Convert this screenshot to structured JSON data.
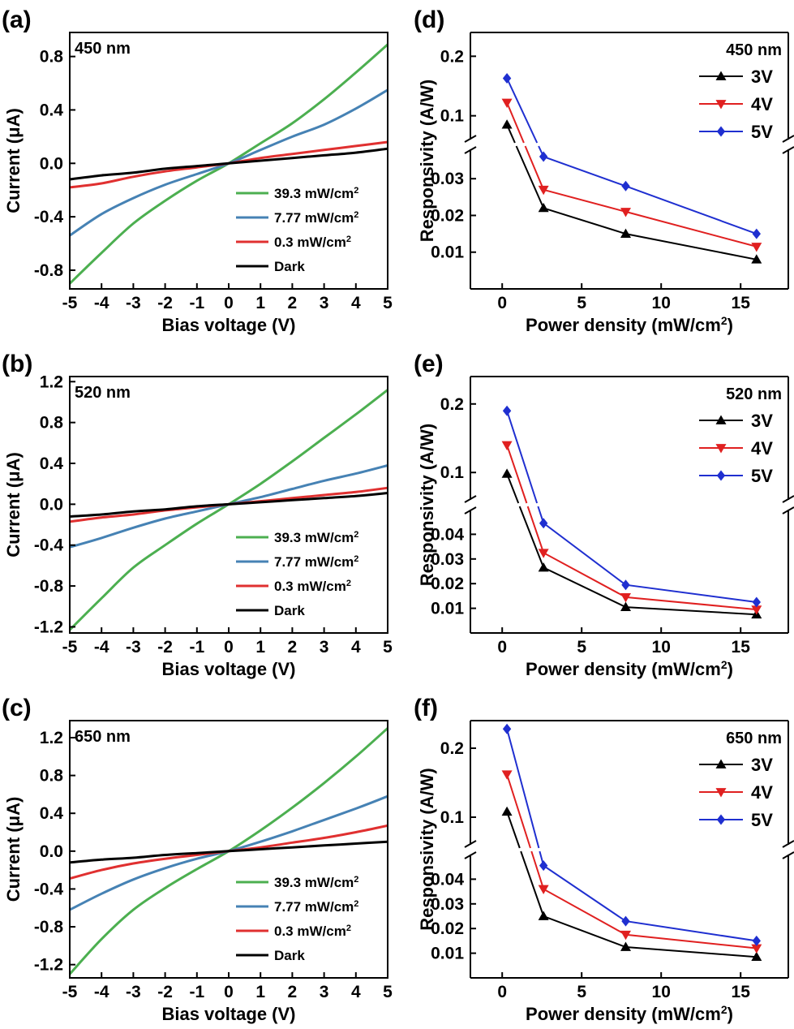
{
  "chart_data": [
    {
      "panel": "(a)",
      "type": "line",
      "annotation": "450 nm",
      "xlabel": "Bias voltage (V)",
      "ylabel": "Current (μA)",
      "xlim": [
        -5,
        5
      ],
      "ylim": [
        -0.94,
        0.98
      ],
      "xticks": [
        -5,
        -4,
        -3,
        -2,
        -1,
        0,
        1,
        2,
        3,
        4,
        5
      ],
      "xtick_labels": [
        "-5",
        "-4",
        "-3",
        "-2",
        "-1",
        "0",
        "1",
        "2",
        "3",
        "4",
        "5"
      ],
      "yticks": [
        -0.8,
        -0.4,
        0.0,
        0.4,
        0.8
      ],
      "ytick_labels": [
        "-0.8",
        "-0.4",
        "0.0",
        "0.4",
        "0.8"
      ],
      "legend_position": "lower-right",
      "series": [
        {
          "name": "39.3 mW/cm²",
          "color": "#4caf50",
          "x": [
            -5,
            -4,
            -3,
            -2,
            -1,
            0,
            1,
            2,
            3,
            4,
            5
          ],
          "y": [
            -0.9,
            -0.67,
            -0.45,
            -0.28,
            -0.13,
            0,
            0.15,
            0.3,
            0.48,
            0.68,
            0.89
          ]
        },
        {
          "name": "7.77 mW/cm²",
          "color": "#4682b4",
          "x": [
            -5,
            -4,
            -3,
            -2,
            -1,
            0,
            1,
            2,
            3,
            4,
            5
          ],
          "y": [
            -0.54,
            -0.38,
            -0.26,
            -0.16,
            -0.08,
            0,
            0.1,
            0.2,
            0.29,
            0.41,
            0.55
          ]
        },
        {
          "name": "0.3 mW/cm²",
          "color": "#e03030",
          "x": [
            -5,
            -4,
            -3,
            -2,
            -1,
            0,
            1,
            2,
            3,
            4,
            5
          ],
          "y": [
            -0.18,
            -0.15,
            -0.1,
            -0.06,
            -0.03,
            0,
            0.04,
            0.07,
            0.1,
            0.13,
            0.16
          ]
        },
        {
          "name": "Dark",
          "color": "#000000",
          "x": [
            -5,
            -4,
            -3,
            -2,
            -1,
            0,
            1,
            2,
            3,
            4,
            5
          ],
          "y": [
            -0.12,
            -0.09,
            -0.07,
            -0.04,
            -0.02,
            0,
            0.02,
            0.04,
            0.06,
            0.08,
            0.11
          ]
        }
      ]
    },
    {
      "panel": "(b)",
      "type": "line",
      "annotation": "520 nm",
      "xlabel": "Bias voltage (V)",
      "ylabel": "Current (μA)",
      "xlim": [
        -5,
        5
      ],
      "ylim": [
        -1.26,
        1.25
      ],
      "xticks": [
        -5,
        -4,
        -3,
        -2,
        -1,
        0,
        1,
        2,
        3,
        4,
        5
      ],
      "xtick_labels": [
        "-5",
        "-4",
        "-3",
        "-2",
        "-1",
        "0",
        "1",
        "2",
        "3",
        "4",
        "5"
      ],
      "yticks": [
        -1.2,
        -0.8,
        -0.4,
        0.0,
        0.4,
        0.8,
        1.2
      ],
      "ytick_labels": [
        "-1.2",
        "-0.8",
        "-0.4",
        "0.0",
        "0.4",
        "0.8",
        "1.2"
      ],
      "legend_position": "lower-right",
      "series": [
        {
          "name": "39.3 mW/cm²",
          "color": "#4caf50",
          "x": [
            -5,
            -4,
            -3,
            -2,
            -1,
            0,
            1,
            2,
            3,
            4,
            5
          ],
          "y": [
            -1.23,
            -0.92,
            -0.62,
            -0.4,
            -0.19,
            0,
            0.2,
            0.42,
            0.65,
            0.88,
            1.12
          ]
        },
        {
          "name": "7.77 mW/cm²",
          "color": "#4682b4",
          "x": [
            -5,
            -4,
            -3,
            -2,
            -1,
            0,
            1,
            2,
            3,
            4,
            5
          ],
          "y": [
            -0.42,
            -0.33,
            -0.23,
            -0.14,
            -0.07,
            0,
            0.07,
            0.15,
            0.23,
            0.3,
            0.38
          ]
        },
        {
          "name": "0.3 mW/cm²",
          "color": "#e03030",
          "x": [
            -5,
            -4,
            -3,
            -2,
            -1,
            0,
            1,
            2,
            3,
            4,
            5
          ],
          "y": [
            -0.17,
            -0.13,
            -0.1,
            -0.06,
            -0.03,
            0,
            0.03,
            0.06,
            0.09,
            0.12,
            0.16
          ]
        },
        {
          "name": "Dark",
          "color": "#000000",
          "x": [
            -5,
            -4,
            -3,
            -2,
            -1,
            0,
            1,
            2,
            3,
            4,
            5
          ],
          "y": [
            -0.12,
            -0.1,
            -0.07,
            -0.05,
            -0.02,
            0,
            0.02,
            0.04,
            0.06,
            0.08,
            0.11
          ]
        }
      ]
    },
    {
      "panel": "(c)",
      "type": "line",
      "annotation": "650 nm",
      "xlabel": "Bias voltage (V)",
      "ylabel": "Current (μA)",
      "xlim": [
        -5,
        5
      ],
      "ylim": [
        -1.34,
        1.38
      ],
      "xticks": [
        -5,
        -4,
        -3,
        -2,
        -1,
        0,
        1,
        2,
        3,
        4,
        5
      ],
      "xtick_labels": [
        "-5",
        "-4",
        "-3",
        "-2",
        "-1",
        "0",
        "1",
        "2",
        "3",
        "4",
        "5"
      ],
      "yticks": [
        -1.2,
        -0.8,
        -0.4,
        0.0,
        0.4,
        0.8,
        1.2
      ],
      "ytick_labels": [
        "-1.2",
        "-0.8",
        "-0.4",
        "0.0",
        "0.4",
        "0.8",
        "1.2"
      ],
      "legend_position": "lower-right",
      "series": [
        {
          "name": "39.3 mW/cm²",
          "color": "#4caf50",
          "x": [
            -5,
            -4,
            -3,
            -2,
            -1,
            0,
            1,
            2,
            3,
            4,
            5
          ],
          "y": [
            -1.3,
            -0.93,
            -0.62,
            -0.39,
            -0.19,
            0,
            0.22,
            0.46,
            0.72,
            1.0,
            1.3
          ]
        },
        {
          "name": "7.77 mW/cm²",
          "color": "#4682b4",
          "x": [
            -5,
            -4,
            -3,
            -2,
            -1,
            0,
            1,
            2,
            3,
            4,
            5
          ],
          "y": [
            -0.62,
            -0.45,
            -0.3,
            -0.18,
            -0.08,
            0,
            0.1,
            0.21,
            0.33,
            0.45,
            0.58
          ]
        },
        {
          "name": "0.3 mW/cm²",
          "color": "#e03030",
          "x": [
            -5,
            -4,
            -3,
            -2,
            -1,
            0,
            1,
            2,
            3,
            4,
            5
          ],
          "y": [
            -0.29,
            -0.2,
            -0.13,
            -0.08,
            -0.04,
            0,
            0.04,
            0.09,
            0.14,
            0.2,
            0.27
          ]
        },
        {
          "name": "Dark",
          "color": "#000000",
          "x": [
            -5,
            -4,
            -3,
            -2,
            -1,
            0,
            1,
            2,
            3,
            4,
            5
          ],
          "y": [
            -0.12,
            -0.09,
            -0.07,
            -0.04,
            -0.02,
            0,
            0.02,
            0.04,
            0.06,
            0.08,
            0.1
          ]
        }
      ]
    },
    {
      "panel": "(d)",
      "type": "line",
      "annotation": "450 nm",
      "xlabel": "Power density (mW/cm²)",
      "ylabel": "Responsivity (A/W)",
      "xlim": [
        -2,
        18
      ],
      "axis_break": true,
      "lower_ylim": [
        0.0,
        0.038
      ],
      "upper_ylim": [
        0.06,
        0.24
      ],
      "xticks": [
        0,
        5,
        10,
        15
      ],
      "xtick_labels": [
        "0",
        "5",
        "10",
        "15"
      ],
      "lower_yticks": [
        0.01,
        0.02,
        0.03
      ],
      "lower_ytick_labels": [
        "0.01",
        "0.02",
        "0.03"
      ],
      "upper_yticks": [
        0.1,
        0.2
      ],
      "upper_ytick_labels": [
        "0.1",
        "0.2"
      ],
      "legend_position": "top-right",
      "series": [
        {
          "name": "3V",
          "color": "#000000",
          "marker": "triangle-up",
          "x": [
            0.3,
            2.6,
            7.77,
            16.0
          ],
          "y": [
            0.085,
            0.022,
            0.015,
            0.008
          ]
        },
        {
          "name": "4V",
          "color": "#e02020",
          "marker": "triangle-down",
          "x": [
            0.3,
            2.6,
            7.77,
            16.0
          ],
          "y": [
            0.122,
            0.027,
            0.021,
            0.0115
          ]
        },
        {
          "name": "5V",
          "color": "#1f2fd0",
          "marker": "diamond",
          "x": [
            0.3,
            2.6,
            7.77,
            16.0
          ],
          "y": [
            0.163,
            0.036,
            0.028,
            0.015
          ]
        }
      ]
    },
    {
      "panel": "(e)",
      "type": "line",
      "annotation": "520 nm",
      "xlabel": "Power density (mW/cm²)",
      "ylabel": "Responsivity (A/W)",
      "xlim": [
        -2,
        18
      ],
      "axis_break": true,
      "lower_ylim": [
        0.0,
        0.05
      ],
      "upper_ylim": [
        0.06,
        0.24
      ],
      "xticks": [
        0,
        5,
        10,
        15
      ],
      "xtick_labels": [
        "0",
        "5",
        "10",
        "15"
      ],
      "lower_yticks": [
        0.01,
        0.02,
        0.03,
        0.04
      ],
      "lower_ytick_labels": [
        "0.01",
        "0.02",
        "0.03",
        "0.04"
      ],
      "upper_yticks": [
        0.1,
        0.2
      ],
      "upper_ytick_labels": [
        "0.1",
        "0.2"
      ],
      "legend_position": "top-right",
      "series": [
        {
          "name": "3V",
          "color": "#000000",
          "marker": "triangle-up",
          "x": [
            0.3,
            2.6,
            7.77,
            16.0
          ],
          "y": [
            0.098,
            0.0265,
            0.0105,
            0.0075
          ]
        },
        {
          "name": "4V",
          "color": "#e02020",
          "marker": "triangle-down",
          "x": [
            0.3,
            2.6,
            7.77,
            16.0
          ],
          "y": [
            0.14,
            0.0325,
            0.0145,
            0.0095
          ]
        },
        {
          "name": "5V",
          "color": "#1f2fd0",
          "marker": "diamond",
          "x": [
            0.3,
            2.6,
            7.77,
            16.0
          ],
          "y": [
            0.19,
            0.0445,
            0.0195,
            0.0125
          ]
        }
      ]
    },
    {
      "panel": "(f)",
      "type": "line",
      "annotation": "650 nm",
      "xlabel": "Power density (mW/cm²)",
      "ylabel": "Responsivity (A/W)",
      "xlim": [
        -2,
        18
      ],
      "axis_break": true,
      "lower_ylim": [
        0.0,
        0.05
      ],
      "upper_ylim": [
        0.06,
        0.24
      ],
      "xticks": [
        0,
        5,
        10,
        15
      ],
      "xtick_labels": [
        "0",
        "5",
        "10",
        "15"
      ],
      "lower_yticks": [
        0.01,
        0.02,
        0.03,
        0.04
      ],
      "lower_ytick_labels": [
        "0.01",
        "0.02",
        "0.03",
        "0.04"
      ],
      "upper_yticks": [
        0.1,
        0.2
      ],
      "upper_ytick_labels": [
        "0.1",
        "0.2"
      ],
      "legend_position": "top-right",
      "series": [
        {
          "name": "3V",
          "color": "#000000",
          "marker": "triangle-up",
          "x": [
            0.3,
            2.6,
            7.77,
            16.0
          ],
          "y": [
            0.108,
            0.025,
            0.0125,
            0.0085
          ]
        },
        {
          "name": "4V",
          "color": "#e02020",
          "marker": "triangle-down",
          "x": [
            0.3,
            2.6,
            7.77,
            16.0
          ],
          "y": [
            0.162,
            0.036,
            0.0175,
            0.012
          ]
        },
        {
          "name": "5V",
          "color": "#1f2fd0",
          "marker": "diamond",
          "x": [
            0.3,
            2.6,
            7.77,
            16.0
          ],
          "y": [
            0.228,
            0.0455,
            0.023,
            0.015
          ]
        }
      ]
    }
  ]
}
